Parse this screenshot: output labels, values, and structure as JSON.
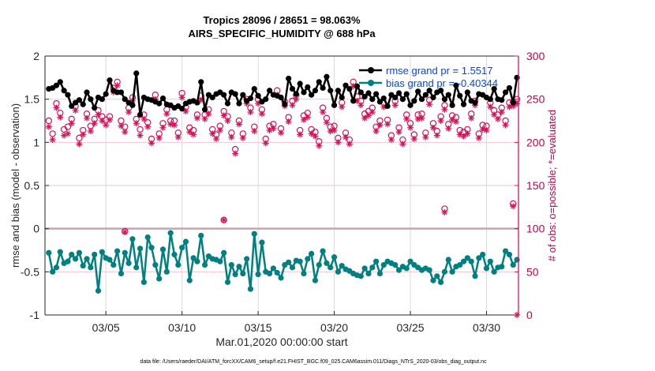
{
  "chart_data": {
    "type": "line",
    "title": "Tropics 28096 / 28651 = 98.063%",
    "subtitle": "AIRS_SPECIFIC_HUMIDITY @ 688 hPa",
    "xlabel": "Mar.01,2020 00:00:00 start",
    "ylabel": "rmse and bias (model - observation)",
    "y2label": "# of obs: o=possible; *=evaluated",
    "footnote": "data file: /Users/raeder/DAI/ATM_forcXX/CAM6_setup/f.e21.FHIST_BGC.f09_025.CAM6assim.011/Diags_NTrS_2020-03/obs_diag_output.nc",
    "xlim_days": [
      0,
      31.1
    ],
    "ylim": [
      -1,
      2
    ],
    "y2lim": [
      0,
      300
    ],
    "grid": true,
    "legend_position": "top-right",
    "x_ticks": [
      {
        "day": 4,
        "label": "03/05"
      },
      {
        "day": 9,
        "label": "03/10"
      },
      {
        "day": 14,
        "label": "03/15"
      },
      {
        "day": 19,
        "label": "03/20"
      },
      {
        "day": 24,
        "label": "03/25"
      },
      {
        "day": 29,
        "label": "03/30"
      }
    ],
    "y_ticks": [
      "-1",
      "-0.5",
      "0",
      "0.5",
      "1",
      "1.5",
      "2"
    ],
    "y_tick_values": [
      -1,
      -0.5,
      0,
      0.5,
      1,
      1.5,
      2
    ],
    "y2_ticks": [
      "0",
      "50",
      "100",
      "150",
      "200",
      "250",
      "300"
    ],
    "y2_tick_values": [
      0,
      50,
      100,
      150,
      200,
      250,
      300
    ],
    "x_step_days": 0.25,
    "x_start_day": 0.25,
    "series": [
      {
        "name": "rmse",
        "legend": "rmse grand pr = 1.5517",
        "color": "#000000",
        "values": [
          1.62,
          1.63,
          1.66,
          1.7,
          1.6,
          1.55,
          1.42,
          1.46,
          1.49,
          1.44,
          1.58,
          1.5,
          1.4,
          1.52,
          1.5,
          1.56,
          1.72,
          1.6,
          1.58,
          1.58,
          1.5,
          1.46,
          1.43,
          1.8,
          1.32,
          1.52,
          1.5,
          1.49,
          1.47,
          1.45,
          1.51,
          1.44,
          1.43,
          1.4,
          1.42,
          1.39,
          1.45,
          1.47,
          1.48,
          1.46,
          1.7,
          1.38,
          1.55,
          1.52,
          1.56,
          1.58,
          1.55,
          1.45,
          1.58,
          1.56,
          1.45,
          1.55,
          1.48,
          1.51,
          1.62,
          1.54,
          1.47,
          1.5,
          1.6,
          1.55,
          1.54,
          1.52,
          1.44,
          1.74,
          1.62,
          1.56,
          1.68,
          1.58,
          1.64,
          1.55,
          1.6,
          1.7,
          1.63,
          1.76,
          1.6,
          1.43,
          1.6,
          1.52,
          1.66,
          1.62,
          1.48,
          1.65,
          1.58,
          1.53,
          1.57,
          1.5,
          1.56,
          1.47,
          1.51,
          1.42,
          1.55,
          1.52,
          1.57,
          1.5,
          1.56,
          1.43,
          1.48,
          1.59,
          1.5,
          1.55,
          1.6,
          1.52,
          1.58,
          1.6,
          1.5,
          1.55,
          1.43,
          1.66,
          1.54,
          1.44,
          1.58,
          1.48,
          1.46,
          1.56,
          1.55,
          1.52,
          1.5,
          1.62,
          1.5,
          1.49,
          1.58,
          1.63,
          1.46,
          1.75
        ]
      },
      {
        "name": "bias",
        "legend": "bias grand pr = -0.40344",
        "color": "#008080",
        "values": [
          -0.28,
          -0.5,
          -0.45,
          -0.27,
          -0.4,
          -0.38,
          -0.3,
          -0.35,
          -0.28,
          -0.43,
          -0.35,
          -0.45,
          -0.3,
          -0.72,
          -0.27,
          -0.34,
          -0.36,
          -0.42,
          -0.26,
          -0.52,
          -0.28,
          -0.4,
          -0.12,
          -0.45,
          -0.23,
          -0.62,
          -0.1,
          -0.22,
          -0.42,
          -0.58,
          -0.24,
          -0.5,
          -0.05,
          -0.3,
          -0.42,
          -0.22,
          -0.15,
          -0.6,
          -0.34,
          -0.38,
          -0.08,
          -0.42,
          -0.32,
          -0.35,
          -0.36,
          -0.38,
          -0.28,
          -0.62,
          -0.42,
          -0.53,
          -0.44,
          -0.52,
          -0.35,
          -0.7,
          -0.06,
          -0.53,
          -0.16,
          -0.5,
          -0.52,
          -0.46,
          -0.51,
          -0.57,
          -0.42,
          -0.39,
          -0.45,
          -0.37,
          -0.38,
          -0.52,
          -0.35,
          -0.29,
          -0.6,
          -0.42,
          -0.26,
          -0.4,
          -0.45,
          -0.33,
          -0.5,
          -0.43,
          -0.47,
          -0.49,
          -0.52,
          -0.54,
          -0.55,
          -0.46,
          -0.52,
          -0.45,
          -0.38,
          -0.52,
          -0.42,
          -0.38,
          -0.4,
          -0.42,
          -0.48,
          -0.44,
          -0.46,
          -0.38,
          -0.42,
          -0.45,
          -0.48,
          -0.46,
          -0.48,
          -0.6,
          -0.55,
          -0.62,
          -0.5,
          -0.36,
          -0.5,
          -0.44,
          -0.42,
          -0.38,
          -0.34,
          -0.38,
          -0.55,
          -0.34,
          -0.3,
          -0.46,
          -0.38,
          -0.5,
          -0.45,
          -0.44,
          -0.26,
          -0.3,
          -0.42,
          -0.36
        ]
      },
      {
        "name": "obs_possible",
        "color": "#d4145a",
        "marker": "o",
        "axis": "right",
        "values": [
          225,
          210,
          245,
          234,
          215,
          218,
          227,
          242,
          205,
          214,
          233,
          219,
          227,
          237,
          230,
          226,
          230,
          263,
          270,
          225,
          218,
          240,
          252,
          227,
          215,
          232,
          223,
          204,
          255,
          210,
          222,
          238,
          225,
          225,
          211,
          257,
          241,
          217,
          214,
          232,
          254,
          232,
          238,
          215,
          209,
          219,
          236,
          230,
          211,
          192,
          225,
          210,
          250,
          240,
          218,
          250,
          238,
          204,
          219,
          221,
          260,
          216,
          247,
          229,
          248,
          255,
          214,
          231,
          234,
          215,
          212,
          201,
          240,
          228,
          218,
          219,
          205,
          246,
          211,
          203,
          270,
          253,
          248,
          233,
          236,
          240,
          218,
          225,
          246,
          226,
          208,
          248,
          217,
          203,
          232,
          222,
          209,
          232,
          233,
          211,
          249,
          222,
          213,
          230,
          243,
          221,
          231,
          229,
          214,
          212,
          215,
          233,
          248,
          210,
          220,
          219,
          246,
          237,
          232,
          240,
          225,
          246,
          247,
          250
        ]
      },
      {
        "name": "obs_evaluated",
        "color": "#d4145a",
        "marker": "*",
        "axis": "right",
        "values": [
          218,
          203,
          240,
          229,
          208,
          210,
          222,
          237,
          198,
          209,
          228,
          213,
          222,
          232,
          225,
          220,
          226,
          258,
          266,
          219,
          212,
          235,
          248,
          222,
          208,
          227,
          218,
          199,
          250,
          205,
          217,
          233,
          221,
          220,
          206,
          252,
          236,
          212,
          209,
          228,
          249,
          227,
          233,
          210,
          204,
          214,
          231,
          225,
          206,
          187,
          221,
          205,
          245,
          235,
          213,
          245,
          233,
          199,
          214,
          216,
          255,
          211,
          242,
          224,
          243,
          250,
          209,
          226,
          229,
          210,
          207,
          196,
          235,
          223,
          213,
          214,
          200,
          241,
          206,
          198,
          265,
          248,
          243,
          228,
          231,
          235,
          213,
          220,
          241,
          221,
          203,
          243,
          212,
          198,
          227,
          217,
          204,
          227,
          228,
          206,
          244,
          217,
          208,
          225,
          238,
          216,
          226,
          224,
          209,
          207,
          210,
          228,
          243,
          205,
          215,
          214,
          241,
          232,
          227,
          235,
          220,
          241,
          242,
          245
        ]
      }
    ],
    "outliers": [
      {
        "series": "obs_evaluated",
        "day": 11.75,
        "value": 110
      },
      {
        "series": "obs_possible",
        "day": 11.75,
        "value": 110
      },
      {
        "series": "obs_possible",
        "day": 26.25,
        "value": 123
      },
      {
        "series": "obs_evaluated",
        "day": 26.25,
        "value": 119
      },
      {
        "series": "obs_possible",
        "day": 30.75,
        "value": 129
      },
      {
        "series": "obs_evaluated",
        "day": 30.75,
        "value": 126
      },
      {
        "series": "obs_possible",
        "day": 5.25,
        "value": 97
      },
      {
        "series": "obs_evaluated",
        "day": 5.25,
        "value": 96
      },
      {
        "series": "obs_evaluated",
        "day": 31.0,
        "value": 0
      }
    ]
  }
}
